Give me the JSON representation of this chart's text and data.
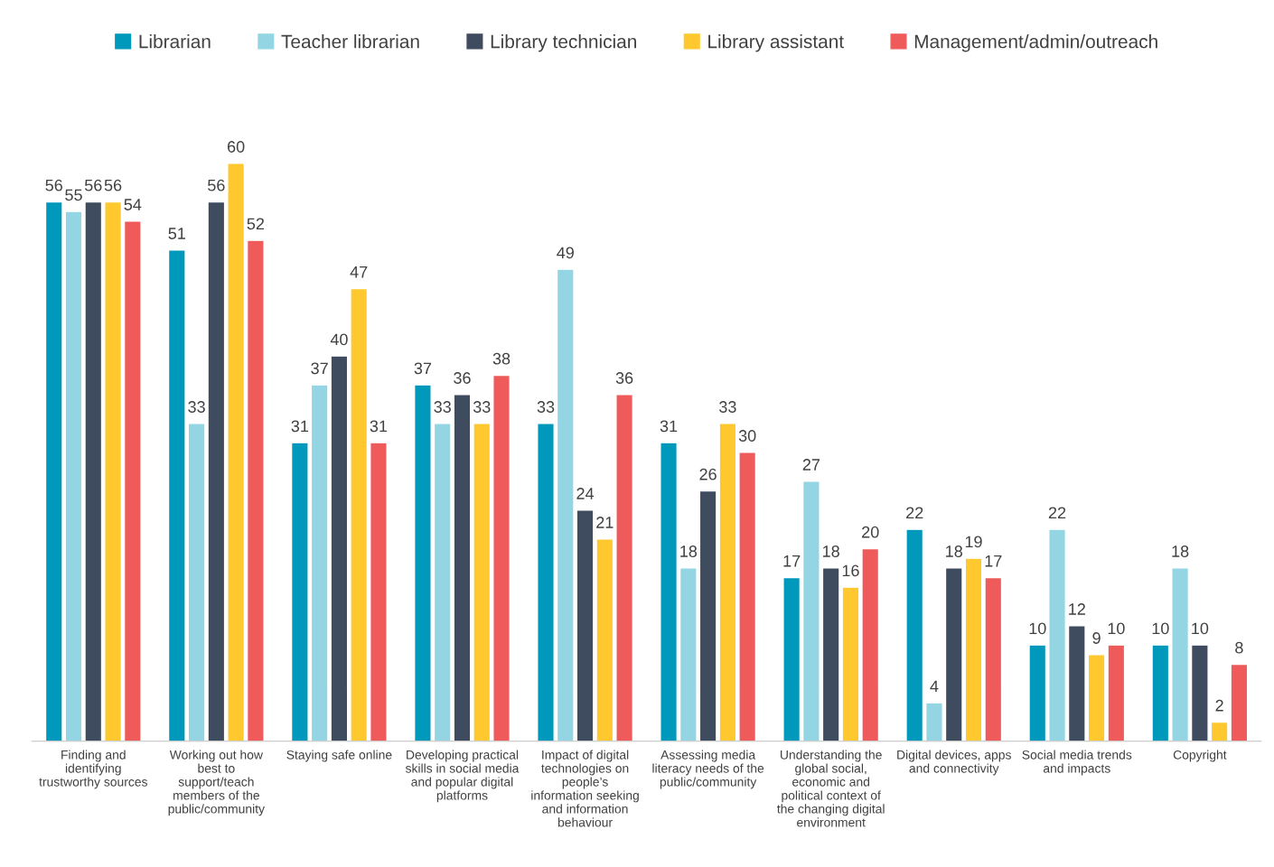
{
  "chart_data": {
    "type": "bar",
    "categories": [
      "Finding and\nidentifying\ntrustworthy sources",
      "Working out how\nbest to\nsupport/teach\nmembers of the\npublic/community",
      "Staying safe online",
      "Developing practical\nskills in social media\nand popular digital\nplatforms",
      "Impact of digital\ntechnologies on\npeople’s\ninformation seeking\nand information\nbehaviour",
      "Assessing media\nliteracy needs of the\npublic/community",
      "Understanding the\nglobal social,\neconomic and\npolitical context of\nthe changing digital\nenvironment",
      "Digital devices, apps\nand connectivity",
      "Social media trends\nand impacts",
      "Copyright"
    ],
    "series": [
      {
        "name": "Librarian",
        "color": "#0099bb",
        "values": [
          56,
          51,
          31,
          37,
          33,
          31,
          17,
          22,
          10,
          10
        ]
      },
      {
        "name": "Teacher librarian",
        "color": "#93d5e2",
        "values": [
          55,
          33,
          37,
          33,
          49,
          18,
          27,
          4,
          22,
          18
        ]
      },
      {
        "name": "Library technician",
        "color": "#3f4b5e",
        "values": [
          56,
          56,
          40,
          36,
          24,
          26,
          18,
          18,
          12,
          10
        ]
      },
      {
        "name": "Library assistant",
        "color": "#ffc82e",
        "values": [
          56,
          60,
          47,
          33,
          21,
          33,
          16,
          19,
          9,
          2
        ]
      },
      {
        "name": "Management/admin/outreach",
        "color": "#ef5b5b",
        "values": [
          54,
          52,
          31,
          38,
          36,
          30,
          20,
          17,
          10,
          8
        ]
      }
    ],
    "data_labels": true,
    "legend": "top",
    "grid": false,
    "tick_labels": "x"
  }
}
